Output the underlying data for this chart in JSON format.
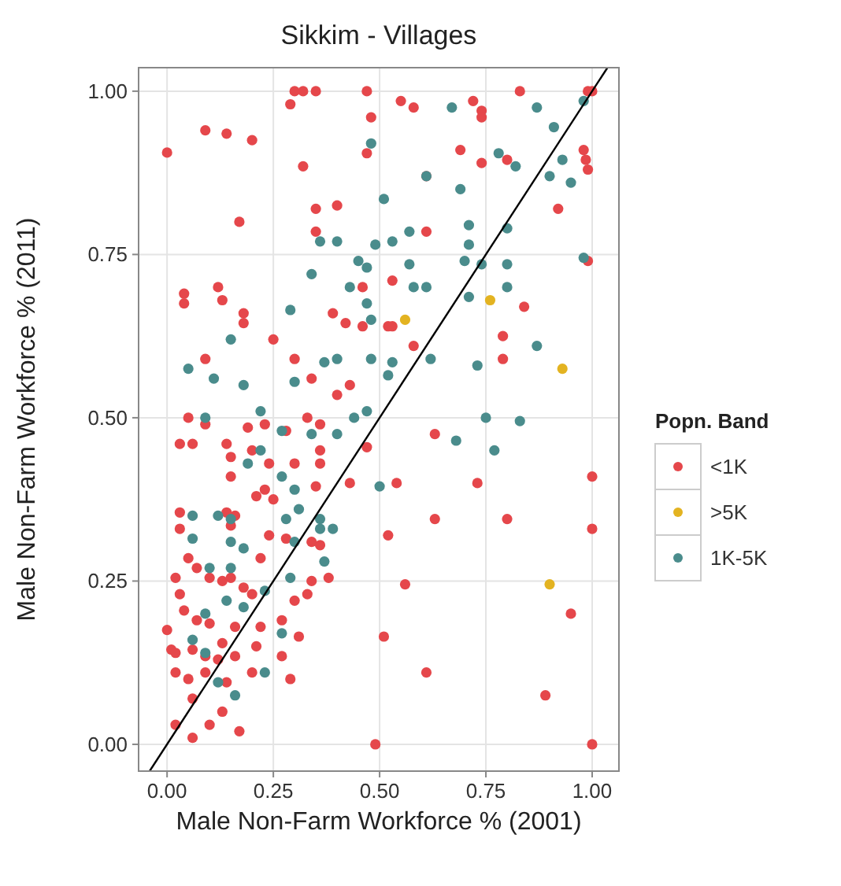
{
  "chart_data": {
    "type": "scatter",
    "title": "Sikkim - Villages",
    "xlabel": "Male Non-Farm Workforce % (2001)",
    "ylabel": "Male Non-Farm Workforce % (2011)",
    "legend_title": "Popn. Band",
    "legend": "right",
    "grid": true,
    "marker": "circle",
    "xlim": [
      -0.067,
      1.063
    ],
    "ylim": [
      -0.041,
      1.036
    ],
    "xticks": [
      {
        "value": 0,
        "label": "0.00"
      },
      {
        "value": 0.25,
        "label": "0.25"
      },
      {
        "value": 0.5,
        "label": "0.50"
      },
      {
        "value": 0.75,
        "label": "0.75"
      },
      {
        "value": 1,
        "label": "1.00"
      }
    ],
    "yticks": [
      {
        "value": 0,
        "label": "0.00"
      },
      {
        "value": 0.25,
        "label": "0.25"
      },
      {
        "value": 0.5,
        "label": "0.50"
      },
      {
        "value": 0.75,
        "label": "0.75"
      },
      {
        "value": 1,
        "label": "1.00"
      }
    ],
    "series": [
      {
        "name": "<1K",
        "color": "#e5474b",
        "x": [
          0,
          0.3,
          0.32,
          0.35,
          0.29,
          0.47,
          0.55,
          0.58,
          0.83,
          0.72,
          0.74,
          0.74,
          0.99,
          1.0,
          0.48,
          0.09,
          0.14,
          0.2,
          0.47,
          0.32,
          0.69,
          0.74,
          0.8,
          0.98,
          0.985,
          0.99,
          0.61,
          0.35,
          0.4,
          0.92,
          0.17,
          0.35,
          0.61,
          0.99,
          0.04,
          0.04,
          0.12,
          0.13,
          0.53,
          0.46,
          0.18,
          0.18,
          0.25,
          0.39,
          0.42,
          0.46,
          0.52,
          0.53,
          0.58,
          0.84,
          0.79,
          0.79,
          0.09,
          0.3,
          0.34,
          0.4,
          0.43,
          0.63,
          0.54,
          0.73,
          1.0,
          0.63,
          0.8,
          1.0,
          0.52,
          0.56,
          0.95,
          0.51,
          0.61,
          0.89,
          0.49,
          1.0,
          0.05,
          0.09,
          0.03,
          0.06,
          0.14,
          0.15,
          0.19,
          0.23,
          0.28,
          0.33,
          0.36,
          0.36,
          0.2,
          0.24,
          0.3,
          0.36,
          0.15,
          0.23,
          0.21,
          0.25,
          0.35,
          0.43,
          0.47,
          0.03,
          0.03,
          0.14,
          0.16,
          0.15,
          0.24,
          0.28,
          0.34,
          0.36,
          0.05,
          0.07,
          0.02,
          0.03,
          0.1,
          0.13,
          0.15,
          0.18,
          0.22,
          0.2,
          0.38,
          0.34,
          0.3,
          0.33,
          0.04,
          0.07,
          0.1,
          0.0,
          0.01,
          0.02,
          0.06,
          0.09,
          0.12,
          0.16,
          0.22,
          0.27,
          0.31,
          0.21,
          0.2,
          0.29,
          0.02,
          0.05,
          0.09,
          0.06,
          0.13,
          0.14,
          0.1,
          0.17,
          0.06,
          0.02,
          0.27,
          0.13,
          0.16
        ],
        "values": [
          0.906,
          1.0,
          1.0,
          1.0,
          0.98,
          1.0,
          0.985,
          0.975,
          1.0,
          0.985,
          0.97,
          0.96,
          1.0,
          1.0,
          0.96,
          0.94,
          0.935,
          0.925,
          0.905,
          0.885,
          0.91,
          0.89,
          0.895,
          0.91,
          0.895,
          0.88,
          0.87,
          0.82,
          0.825,
          0.82,
          0.8,
          0.785,
          0.785,
          0.74,
          0.69,
          0.675,
          0.7,
          0.68,
          0.71,
          0.7,
          0.66,
          0.645,
          0.62,
          0.66,
          0.645,
          0.64,
          0.64,
          0.64,
          0.61,
          0.67,
          0.625,
          0.59,
          0.59,
          0.59,
          0.56,
          0.535,
          0.55,
          0.475,
          0.4,
          0.4,
          0.41,
          0.345,
          0.345,
          0.33,
          0.32,
          0.245,
          0.2,
          0.165,
          0.11,
          0.075,
          0,
          0,
          0.5,
          0.49,
          0.46,
          0.46,
          0.46,
          0.44,
          0.485,
          0.49,
          0.48,
          0.5,
          0.49,
          0.45,
          0.45,
          0.43,
          0.43,
          0.43,
          0.41,
          0.39,
          0.38,
          0.375,
          0.395,
          0.4,
          0.455,
          0.355,
          0.33,
          0.355,
          0.35,
          0.335,
          0.32,
          0.315,
          0.31,
          0.305,
          0.285,
          0.27,
          0.255,
          0.23,
          0.255,
          0.25,
          0.255,
          0.24,
          0.285,
          0.23,
          0.255,
          0.25,
          0.22,
          0.23,
          0.205,
          0.19,
          0.185,
          0.175,
          0.145,
          0.14,
          0.145,
          0.135,
          0.13,
          0.18,
          0.18,
          0.19,
          0.165,
          0.15,
          0.11,
          0.1,
          0.11,
          0.1,
          0.11,
          0.07,
          0.05,
          0.095,
          0.03,
          0.02,
          0.01,
          0.03,
          0.135,
          0.155,
          0.135
        ]
      },
      {
        "name": ">5K",
        "color": "#e3b321",
        "x": [
          0.56,
          0.76,
          0.93,
          0.9
        ],
        "values": [
          0.65,
          0.68,
          0.575,
          0.245
        ]
      },
      {
        "name": "1K-5K",
        "color": "#4a8c8c",
        "x": [
          0.48,
          0.67,
          0.78,
          0.87,
          0.82,
          0.91,
          0.93,
          0.9,
          0.95,
          0.98,
          0.61,
          0.69,
          0.51,
          0.71,
          0.71,
          0.8,
          0.36,
          0.4,
          0.49,
          0.53,
          0.57,
          0.7,
          0.74,
          0.8,
          0.98,
          0.45,
          0.47,
          0.57,
          0.34,
          0.43,
          0.58,
          0.61,
          0.71,
          0.8,
          0.29,
          0.47,
          0.48,
          0.15,
          0.37,
          0.4,
          0.48,
          0.53,
          0.62,
          0.73,
          0.87,
          0.05,
          0.11,
          0.18,
          0.3,
          0.52,
          0.75,
          0.83,
          0.68,
          0.77,
          0.5,
          0.09,
          0.22,
          0.27,
          0.34,
          0.4,
          0.44,
          0.47,
          0.19,
          0.22,
          0.3,
          0.27,
          0.06,
          0.12,
          0.15,
          0.28,
          0.31,
          0.36,
          0.39,
          0.15,
          0.18,
          0.3,
          0.29,
          0.06,
          0.1,
          0.15,
          0.14,
          0.18,
          0.27,
          0.23,
          0.06,
          0.09,
          0.12,
          0.16,
          0.36,
          0.37,
          0.09,
          0.23
        ],
        "values": [
          0.92,
          0.975,
          0.905,
          0.975,
          0.885,
          0.945,
          0.895,
          0.87,
          0.86,
          0.985,
          0.87,
          0.85,
          0.835,
          0.795,
          0.765,
          0.79,
          0.77,
          0.77,
          0.765,
          0.77,
          0.785,
          0.74,
          0.735,
          0.735,
          0.745,
          0.74,
          0.73,
          0.735,
          0.72,
          0.7,
          0.7,
          0.7,
          0.685,
          0.7,
          0.665,
          0.675,
          0.65,
          0.62,
          0.585,
          0.59,
          0.59,
          0.585,
          0.59,
          0.58,
          0.61,
          0.575,
          0.56,
          0.55,
          0.555,
          0.565,
          0.5,
          0.495,
          0.465,
          0.45,
          0.395,
          0.5,
          0.51,
          0.48,
          0.475,
          0.475,
          0.5,
          0.51,
          0.43,
          0.45,
          0.39,
          0.41,
          0.35,
          0.35,
          0.345,
          0.345,
          0.36,
          0.345,
          0.33,
          0.31,
          0.3,
          0.31,
          0.255,
          0.315,
          0.27,
          0.27,
          0.22,
          0.21,
          0.17,
          0.11,
          0.16,
          0.14,
          0.095,
          0.075,
          0.33,
          0.28,
          0.2,
          0.235
        ]
      },
      {
        "type": "line",
        "marker": "none",
        "color": "#000000",
        "x": [
          -0.041,
          1.036
        ],
        "values": [
          -0.041,
          1.036
        ]
      }
    ]
  }
}
